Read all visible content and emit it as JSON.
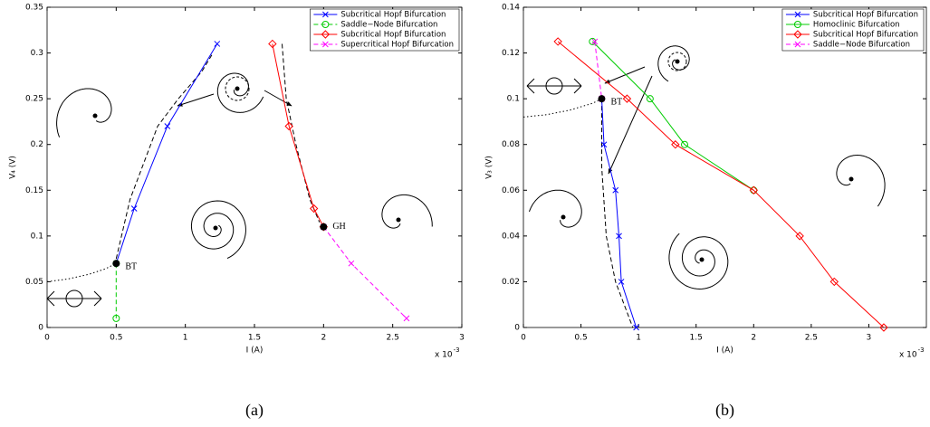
{
  "chart_data": [
    {
      "type": "line",
      "xlabel": "I (A)",
      "ylabel": "V₄ (V)",
      "x_multiplier": "x 10",
      "x_multiplier_exponent": "-3",
      "caption": "(a)",
      "xlim": [
        0,
        3
      ],
      "ylim": [
        0,
        0.35
      ],
      "xticks": [
        0,
        0.5,
        1,
        1.5,
        2,
        2.5,
        3
      ],
      "yticks": [
        0,
        0.05,
        0.1,
        0.15,
        0.2,
        0.25,
        0.3,
        0.35
      ],
      "legend": "upper right",
      "series": [
        {
          "name": "Subcritical Hopf Bifurcation",
          "color": "#0000ff",
          "marker": "x",
          "dash": "solid",
          "x": [
            0.5,
            0.63,
            0.87,
            1.23
          ],
          "values": [
            0.07,
            0.13,
            0.22,
            0.31
          ]
        },
        {
          "name": "Saddle−Node Bifurcation",
          "color": "#00cc00",
          "marker": "o",
          "dash": "dashed",
          "x": [
            0.5,
            0.5
          ],
          "values": [
            0.07,
            0.01
          ]
        },
        {
          "name": "Subcritical Hopf Bifurcation",
          "color": "#ff0000",
          "marker": "diamond",
          "dash": "solid",
          "x": [
            1.63,
            1.75,
            1.93,
            2.0
          ],
          "values": [
            0.31,
            0.22,
            0.13,
            0.11
          ]
        },
        {
          "name": "Supercritical Hopf Bifurcation",
          "color": "#ff00ff",
          "marker": "x",
          "dash": "dashed",
          "x": [
            2.0,
            2.2,
            2.6
          ],
          "values": [
            0.11,
            0.07,
            0.01
          ]
        }
      ],
      "points": [
        {
          "label": "BT",
          "x": 0.5,
          "y": 0.07
        },
        {
          "label": "GH",
          "x": 2.0,
          "y": 0.11
        }
      ],
      "curves": [
        {
          "dash": "dotted",
          "x": [
            0,
            0.15,
            0.3,
            0.42,
            0.5
          ],
          "values": [
            0.05,
            0.053,
            0.058,
            0.064,
            0.07
          ]
        },
        {
          "dash": "dashed",
          "x": [
            0.5,
            0.6,
            0.8,
            0.95,
            1.12,
            1.2
          ],
          "values": [
            0.075,
            0.14,
            0.22,
            0.25,
            0.28,
            0.3
          ]
        },
        {
          "dash": "dashed",
          "x": [
            1.7,
            1.73,
            1.8,
            1.9,
            1.97
          ],
          "values": [
            0.31,
            0.25,
            0.2,
            0.14,
            0.115
          ]
        }
      ]
    },
    {
      "type": "line",
      "xlabel": "I (A)",
      "ylabel": "V₃ (V)",
      "x_multiplier": "x 10",
      "x_multiplier_exponent": "-3",
      "caption": "(b)",
      "xlim": [
        0,
        3.5
      ],
      "ylim": [
        0,
        0.14
      ],
      "xticks": [
        0,
        0.5,
        1,
        1.5,
        2,
        2.5,
        3
      ],
      "yticks": [
        0,
        0.02,
        0.04,
        0.06,
        0.08,
        0.1,
        0.12,
        0.14
      ],
      "legend": "upper right",
      "series": [
        {
          "name": "Subcritical Hopf Bifurcation",
          "color": "#0000ff",
          "marker": "x",
          "dash": "solid",
          "x": [
            0.68,
            0.7,
            0.8,
            0.83,
            0.85,
            0.98
          ],
          "values": [
            0.1,
            0.08,
            0.06,
            0.04,
            0.02,
            0
          ]
        },
        {
          "name": "Homoclinic Bifurcation",
          "color": "#00cc00",
          "marker": "o",
          "dash": "solid",
          "x": [
            0.6,
            1.1,
            1.4,
            2.0
          ],
          "values": [
            0.125,
            0.1,
            0.08,
            0.06
          ]
        },
        {
          "name": "Subcritical Hopf Bifurcation",
          "color": "#ff0000",
          "marker": "diamond",
          "dash": "solid",
          "x": [
            0.3,
            0.9,
            1.32,
            2.0,
            2.4,
            2.7,
            3.13
          ],
          "values": [
            0.125,
            0.1,
            0.08,
            0.06,
            0.04,
            0.02,
            0
          ]
        },
        {
          "name": "Saddle−Node Bifurcation",
          "color": "#ff00ff",
          "marker": "x",
          "dash": "dashed",
          "x": [
            0.62,
            0.68
          ],
          "values": [
            0.125,
            0.1
          ]
        }
      ],
      "points": [
        {
          "label": "BT",
          "x": 0.68,
          "y": 0.1
        }
      ],
      "curves": [
        {
          "dash": "dotted",
          "x": [
            0,
            0.2,
            0.4,
            0.6,
            0.68
          ],
          "values": [
            0.092,
            0.093,
            0.095,
            0.098,
            0.1
          ]
        },
        {
          "dash": "dashed",
          "x": [
            0.68,
            0.68,
            0.72,
            0.8,
            0.95
          ],
          "values": [
            0.1,
            0.07,
            0.04,
            0.02,
            0
          ]
        }
      ]
    }
  ]
}
